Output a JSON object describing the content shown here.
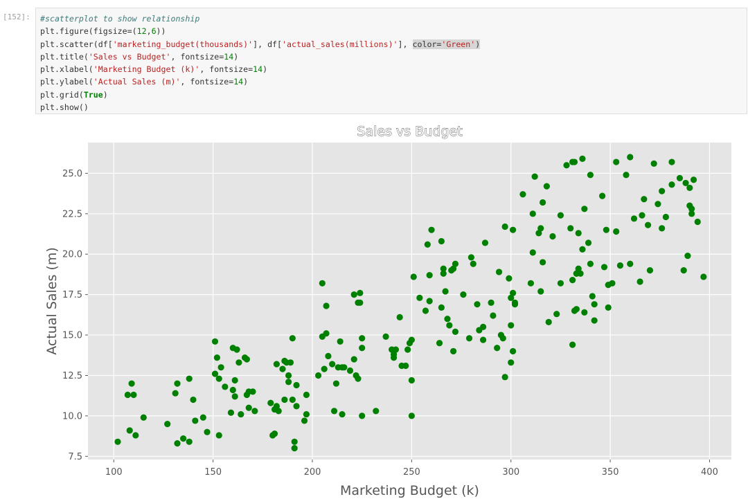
{
  "cell": {
    "prompt": "[152]:",
    "lines": [
      [
        {
          "t": "#scatterplot to show relationship",
          "c": "cmt"
        }
      ],
      [
        {
          "t": "plt.figure(figsize=(",
          "c": ""
        },
        {
          "t": "12",
          "c": "num"
        },
        {
          "t": ",",
          "c": ""
        },
        {
          "t": "6",
          "c": "num"
        },
        {
          "t": "))",
          "c": ""
        }
      ],
      [
        {
          "t": "plt.scatter(df[",
          "c": ""
        },
        {
          "t": "'marketing_budget(thousands)'",
          "c": "str"
        },
        {
          "t": "], df[",
          "c": ""
        },
        {
          "t": "'actual_sales(millions)'",
          "c": "str"
        },
        {
          "t": "], ",
          "c": ""
        },
        {
          "t": "color=",
          "c": "hl"
        },
        {
          "t": "'Green'",
          "c": "str hl"
        },
        {
          "t": ")",
          "c": "hl"
        }
      ],
      [
        {
          "t": "plt.title(",
          "c": ""
        },
        {
          "t": "'Sales vs Budget'",
          "c": "str"
        },
        {
          "t": ", fontsize=",
          "c": ""
        },
        {
          "t": "14",
          "c": "num"
        },
        {
          "t": ")",
          "c": ""
        }
      ],
      [
        {
          "t": "plt.xlabel(",
          "c": ""
        },
        {
          "t": "'Marketing Budget (k)'",
          "c": "str"
        },
        {
          "t": ", fontsize=",
          "c": ""
        },
        {
          "t": "14",
          "c": "num"
        },
        {
          "t": ")",
          "c": ""
        }
      ],
      [
        {
          "t": "plt.ylabel(",
          "c": ""
        },
        {
          "t": "'Actual Sales (m)'",
          "c": "str"
        },
        {
          "t": ", fontsize=",
          "c": ""
        },
        {
          "t": "14",
          "c": "num"
        },
        {
          "t": ")",
          "c": ""
        }
      ],
      [
        {
          "t": "plt.grid(",
          "c": ""
        },
        {
          "t": "True",
          "c": "kw"
        },
        {
          "t": ")",
          "c": ""
        }
      ],
      [
        {
          "t": "plt.show()",
          "c": ""
        }
      ]
    ]
  },
  "chart_data": {
    "type": "scatter",
    "title": "Sales vs Budget",
    "xlabel": "Marketing Budget (k)",
    "ylabel": "Actual Sales (m)",
    "xlim": [
      87,
      411
    ],
    "ylim": [
      7.3,
      26.9
    ],
    "xticks": [
      100,
      150,
      200,
      250,
      300,
      350,
      400
    ],
    "yticks": [
      7.5,
      10.0,
      12.5,
      15.0,
      17.5,
      20.0,
      22.5,
      25.0
    ],
    "grid": true,
    "color": "#008000",
    "background": "#e5e5e5",
    "points": [
      [
        102,
        8.4
      ],
      [
        107,
        11.3
      ],
      [
        108,
        9.1
      ],
      [
        109,
        12.0
      ],
      [
        110,
        11.3
      ],
      [
        111,
        8.8
      ],
      [
        115,
        9.9
      ],
      [
        127,
        9.5
      ],
      [
        131,
        11.4
      ],
      [
        132,
        8.3
      ],
      [
        132,
        12.0
      ],
      [
        135,
        8.6
      ],
      [
        138,
        12.3
      ],
      [
        138,
        8.4
      ],
      [
        140,
        11.0
      ],
      [
        141,
        9.7
      ],
      [
        145,
        9.9
      ],
      [
        147,
        9.0
      ],
      [
        151,
        14.6
      ],
      [
        151,
        12.6
      ],
      [
        152,
        13.6
      ],
      [
        153,
        8.8
      ],
      [
        153,
        12.3
      ],
      [
        154,
        13.0
      ],
      [
        156,
        11.8
      ],
      [
        159,
        10.2
      ],
      [
        160,
        14.2
      ],
      [
        160,
        11.6
      ],
      [
        161,
        12.2
      ],
      [
        161,
        11.2
      ],
      [
        162,
        14.1
      ],
      [
        163,
        13.3
      ],
      [
        164,
        10.1
      ],
      [
        166,
        13.6
      ],
      [
        167,
        13.5
      ],
      [
        167,
        11.3
      ],
      [
        168,
        11.5
      ],
      [
        168,
        10.5
      ],
      [
        170,
        11.5
      ],
      [
        171,
        10.3
      ],
      [
        179,
        10.8
      ],
      [
        180,
        8.8
      ],
      [
        181,
        8.9
      ],
      [
        181,
        10.4
      ],
      [
        182,
        10.6
      ],
      [
        182,
        13.2
      ],
      [
        183,
        10.3
      ],
      [
        185,
        12.9
      ],
      [
        186,
        13.4
      ],
      [
        186,
        11.0
      ],
      [
        187,
        13.3
      ],
      [
        188,
        12.5
      ],
      [
        188,
        12.1
      ],
      [
        189,
        13.3
      ],
      [
        190,
        14.8
      ],
      [
        190,
        11.0
      ],
      [
        191,
        8.4
      ],
      [
        191,
        8.0
      ],
      [
        192,
        11.9
      ],
      [
        192,
        10.6
      ],
      [
        196,
        9.7
      ],
      [
        197,
        10.1
      ],
      [
        197,
        11.3
      ],
      [
        203,
        12.5
      ],
      [
        205,
        18.2
      ],
      [
        205,
        14.9
      ],
      [
        206,
        12.9
      ],
      [
        207,
        15.1
      ],
      [
        207,
        16.8
      ],
      [
        208,
        13.7
      ],
      [
        210,
        13.2
      ],
      [
        211,
        10.3
      ],
      [
        212,
        12.0
      ],
      [
        213,
        13.0
      ],
      [
        214,
        14.6
      ],
      [
        215,
        13.0
      ],
      [
        215,
        10.1
      ],
      [
        216,
        13.0
      ],
      [
        219,
        12.8
      ],
      [
        221,
        13.5
      ],
      [
        221,
        17.5
      ],
      [
        222,
        12.5
      ],
      [
        223,
        12.3
      ],
      [
        223,
        17.0
      ],
      [
        224,
        17.0
      ],
      [
        224,
        17.6
      ],
      [
        225,
        14.8
      ],
      [
        225,
        14.2
      ],
      [
        225,
        10.0
      ],
      [
        232,
        10.3
      ],
      [
        237,
        14.9
      ],
      [
        240,
        14.1
      ],
      [
        241,
        13.6
      ],
      [
        241,
        13.8
      ],
      [
        242,
        14.1
      ],
      [
        244,
        16.1
      ],
      [
        245,
        13.1
      ],
      [
        247,
        13.1
      ],
      [
        248,
        14.1
      ],
      [
        249,
        14.5
      ],
      [
        250,
        14.7
      ],
      [
        250,
        12.2
      ],
      [
        250,
        10.0
      ],
      [
        251,
        18.6
      ],
      [
        254,
        17.3
      ],
      [
        257,
        16.5
      ],
      [
        258,
        20.6
      ],
      [
        259,
        18.7
      ],
      [
        259,
        17.1
      ],
      [
        260,
        21.5
      ],
      [
        264,
        14.5
      ],
      [
        265,
        16.7
      ],
      [
        265,
        20.8
      ],
      [
        266,
        18.8
      ],
      [
        266,
        19.1
      ],
      [
        267,
        17.7
      ],
      [
        268,
        16.0
      ],
      [
        269,
        15.6
      ],
      [
        270,
        19.0
      ],
      [
        271,
        19.1
      ],
      [
        271,
        14.0
      ],
      [
        272,
        15.2
      ],
      [
        272,
        19.4
      ],
      [
        276,
        17.5
      ],
      [
        279,
        14.8
      ],
      [
        280,
        19.8
      ],
      [
        281,
        19.4
      ],
      [
        283,
        16.9
      ],
      [
        284,
        15.3
      ],
      [
        286,
        14.7
      ],
      [
        286,
        15.5
      ],
      [
        287,
        20.7
      ],
      [
        290,
        17.0
      ],
      [
        291,
        16.2
      ],
      [
        293,
        14.2
      ],
      [
        294,
        18.9
      ],
      [
        295,
        15.0
      ],
      [
        296,
        14.8
      ],
      [
        297,
        21.7
      ],
      [
        297,
        12.4
      ],
      [
        299,
        18.5
      ],
      [
        300,
        17.3
      ],
      [
        300,
        13.3
      ],
      [
        300,
        15.6
      ],
      [
        301,
        17.6
      ],
      [
        301,
        14.0
      ],
      [
        301,
        21.5
      ],
      [
        302,
        17.0
      ],
      [
        302,
        16.9
      ],
      [
        306,
        23.7
      ],
      [
        310,
        18.2
      ],
      [
        311,
        20.1
      ],
      [
        311,
        22.5
      ],
      [
        312,
        24.8
      ],
      [
        314,
        21.3
      ],
      [
        315,
        21.6
      ],
      [
        315,
        17.7
      ],
      [
        316,
        23.2
      ],
      [
        316,
        19.5
      ],
      [
        318,
        24.2
      ],
      [
        319,
        15.8
      ],
      [
        321,
        21.1
      ],
      [
        323,
        16.3
      ],
      [
        325,
        18.2
      ],
      [
        325,
        22.4
      ],
      [
        328,
        25.5
      ],
      [
        330,
        21.6
      ],
      [
        331,
        25.7
      ],
      [
        331,
        14.4
      ],
      [
        331,
        18.4
      ],
      [
        332,
        25.7
      ],
      [
        332,
        16.5
      ],
      [
        333,
        16.6
      ],
      [
        333,
        18.8
      ],
      [
        333,
        18.8
      ],
      [
        334,
        19.1
      ],
      [
        334,
        21.3
      ],
      [
        335,
        18.8
      ],
      [
        336,
        25.9
      ],
      [
        336,
        20.3
      ],
      [
        337,
        22.8
      ],
      [
        337,
        16.4
      ],
      [
        339,
        20.7
      ],
      [
        340,
        24.9
      ],
      [
        340,
        19.4
      ],
      [
        341,
        17.4
      ],
      [
        342,
        16.9
      ],
      [
        342,
        15.9
      ],
      [
        346,
        23.6
      ],
      [
        347,
        19.2
      ],
      [
        348,
        21.5
      ],
      [
        349,
        16.7
      ],
      [
        349,
        18.1
      ],
      [
        351,
        18.2
      ],
      [
        353,
        21.4
      ],
      [
        355,
        19.3
      ],
      [
        358,
        24.9
      ],
      [
        360,
        19.4
      ],
      [
        360,
        26.0
      ],
      [
        362,
        22.2
      ],
      [
        365,
        18.3
      ],
      [
        366,
        22.4
      ],
      [
        367,
        23.4
      ],
      [
        369,
        21.8
      ],
      [
        370,
        19.0
      ],
      [
        372,
        25.6
      ],
      [
        374,
        23.1
      ],
      [
        376,
        21.6
      ],
      [
        376,
        23.9
      ],
      [
        378,
        22.3
      ],
      [
        381,
        25.7
      ],
      [
        381,
        24.3
      ],
      [
        385,
        24.7
      ],
      [
        387,
        19.0
      ],
      [
        388,
        24.4
      ],
      [
        389,
        19.9
      ],
      [
        390,
        24.1
      ],
      [
        390,
        23.0
      ],
      [
        391,
        22.5
      ],
      [
        391,
        22.8
      ],
      [
        392,
        24.6
      ],
      [
        394,
        22.0
      ],
      [
        397,
        18.6
      ],
      [
        353,
        25.7
      ]
    ]
  }
}
